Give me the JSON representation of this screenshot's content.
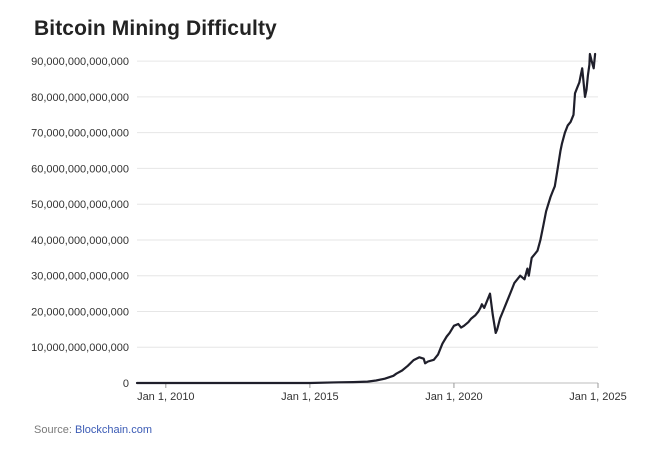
{
  "title": "Bitcoin Mining Difficulty",
  "source": {
    "prefix": "Source:",
    "link_text": "Blockchain.com"
  },
  "colors": {
    "line": "#1f1f2b",
    "grid": "#e6e6e6",
    "link": "#3b5bb5"
  },
  "chart_data": {
    "type": "line",
    "title": "Bitcoin Mining Difficulty",
    "xlabel": "",
    "ylabel": "",
    "xlim": [
      2009.0,
      2025.0
    ],
    "ylim": [
      0,
      92000000000000
    ],
    "grid": true,
    "yticks": [
      0,
      10000000000000,
      20000000000000,
      30000000000000,
      40000000000000,
      50000000000000,
      60000000000000,
      70000000000000,
      80000000000000,
      90000000000000
    ],
    "ytick_labels": [
      "0",
      "10,000,000,000,000",
      "20,000,000,000,000",
      "30,000,000,000,000",
      "40,000,000,000,000",
      "50,000,000,000,000",
      "60,000,000,000,000",
      "70,000,000,000,000",
      "80,000,000,000,000",
      "90,000,000,000,000"
    ],
    "xticks": [
      2010,
      2015,
      2020,
      2025
    ],
    "xtick_labels": [
      "Jan 1, 2010",
      "Jan 1, 2015",
      "Jan 1, 2020",
      "Jan 1, 2025"
    ],
    "series": [
      {
        "name": "Difficulty",
        "x": [
          2009.0,
          2010.0,
          2011.0,
          2012.0,
          2013.0,
          2014.0,
          2015.0,
          2016.0,
          2016.5,
          2017.0,
          2017.3,
          2017.6,
          2017.9,
          2018.0,
          2018.2,
          2018.4,
          2018.6,
          2018.8,
          2018.95,
          2019.0,
          2019.1,
          2019.3,
          2019.45,
          2019.6,
          2019.75,
          2019.85,
          2020.0,
          2020.15,
          2020.25,
          2020.35,
          2020.5,
          2020.6,
          2020.75,
          2020.85,
          2020.92,
          2020.97,
          2021.05,
          2021.15,
          2021.25,
          2021.35,
          2021.45,
          2021.5,
          2021.6,
          2021.7,
          2021.8,
          2021.9,
          2022.0,
          2022.1,
          2022.2,
          2022.3,
          2022.45,
          2022.55,
          2022.6,
          2022.7,
          2022.8,
          2022.9,
          2023.0,
          2023.1,
          2023.2,
          2023.35,
          2023.45,
          2023.5,
          2023.6,
          2023.7,
          2023.75,
          2023.85,
          2023.95,
          2024.05,
          2024.15,
          2024.2,
          2024.3,
          2024.35,
          2024.4,
          2024.45,
          2024.5,
          2024.55,
          2024.6,
          2024.65,
          2024.7,
          2024.72,
          2024.78,
          2024.85,
          2024.9
        ],
        "values": [
          0,
          0,
          0,
          0,
          0,
          0,
          0,
          200000000000,
          250000000000,
          400000000000,
          700000000000,
          1200000000000,
          2000000000000,
          2600000000000,
          3500000000000,
          4800000000000,
          6400000000000,
          7200000000000,
          6800000000000,
          5500000000000,
          6000000000000,
          6500000000000,
          8000000000000,
          11000000000000,
          13000000000000,
          14000000000000,
          16000000000000,
          16500000000000,
          15500000000000,
          16000000000000,
          17000000000000,
          18000000000000,
          19000000000000,
          20000000000000,
          21000000000000,
          22000000000000,
          21000000000000,
          23000000000000,
          25000000000000,
          19000000000000,
          14000000000000,
          15000000000000,
          18000000000000,
          20000000000000,
          22000000000000,
          24000000000000,
          26000000000000,
          28000000000000,
          29000000000000,
          30000000000000,
          29000000000000,
          32000000000000,
          30000000000000,
          35000000000000,
          36000000000000,
          37000000000000,
          40000000000000,
          44000000000000,
          48000000000000,
          52000000000000,
          54000000000000,
          55000000000000,
          60000000000000,
          65000000000000,
          67000000000000,
          70000000000000,
          72000000000000,
          73000000000000,
          75000000000000,
          81000000000000,
          83000000000000,
          84000000000000,
          86000000000000,
          88000000000000,
          84000000000000,
          80000000000000,
          82000000000000,
          86000000000000,
          89000000000000,
          92000000000000,
          90000000000000,
          88000000000000,
          92000000000000
        ]
      }
    ]
  }
}
